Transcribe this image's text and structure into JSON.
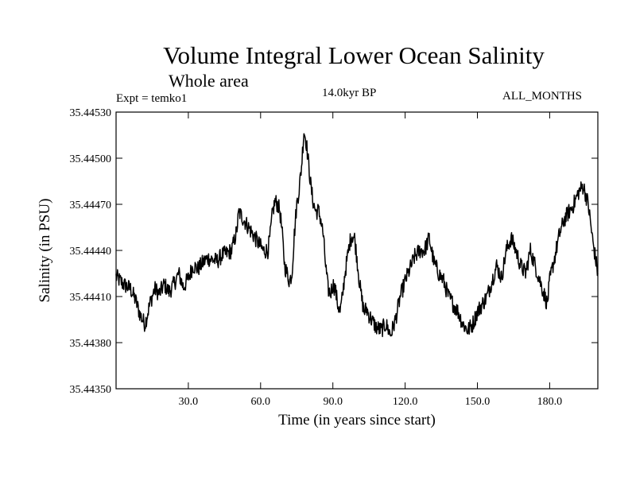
{
  "header": {
    "expt": "Expt = temko1",
    "period": "14.0kyr BP",
    "months": "ALL_MONTHS"
  },
  "chart_data": {
    "type": "line",
    "title": "Volume Integral Lower Ocean Salinity",
    "subtitle": "Whole area",
    "xlabel": "Time (in years since start)",
    "ylabel": "Salinity (in PSU)",
    "xlim": [
      0,
      200
    ],
    "ylim": [
      35.4435,
      35.4453
    ],
    "xticks": [
      30,
      60,
      90,
      120,
      150,
      180
    ],
    "xtick_labels": [
      "30.0",
      "60.0",
      "90.0",
      "120.0",
      "150.0",
      "180.0"
    ],
    "yticks": [
      35.4435,
      35.4438,
      35.4441,
      35.4444,
      35.4447,
      35.445,
      35.4453
    ],
    "ytick_labels": [
      "35.44350",
      "35.44380",
      "35.44410",
      "35.44440",
      "35.44470",
      "35.44500",
      "35.44530"
    ],
    "grid": false,
    "series": [
      {
        "name": "Volume integral lower ocean salinity",
        "x": [
          0,
          3,
          6,
          8,
          10,
          12,
          14,
          16,
          18,
          20,
          22,
          24,
          26,
          28,
          30,
          32,
          34,
          36,
          38,
          40,
          42,
          44,
          46,
          48,
          50,
          51,
          53,
          55,
          57,
          59,
          61,
          63,
          64,
          65,
          66,
          67,
          68,
          69,
          70,
          72,
          73,
          74,
          75,
          76,
          77,
          78,
          79,
          80,
          81,
          82,
          83,
          84,
          85,
          86,
          87,
          88,
          89,
          90,
          91,
          92,
          93,
          94,
          95,
          96,
          97,
          98,
          99,
          100,
          101,
          102,
          103,
          104,
          105,
          106,
          108,
          110,
          112,
          114,
          116,
          118,
          120,
          122,
          124,
          126,
          128,
          130,
          132,
          134,
          136,
          138,
          140,
          142,
          144,
          146,
          148,
          150,
          152,
          154,
          156,
          158,
          160,
          162,
          164,
          166,
          168,
          170,
          172,
          174,
          176,
          177,
          178,
          179,
          180,
          182,
          184,
          186,
          188,
          190,
          192,
          194,
          196,
          198,
          200
        ],
        "y": [
          35.44423,
          35.44418,
          35.44415,
          35.44408,
          35.44398,
          35.44392,
          35.44405,
          35.44415,
          35.44412,
          35.44418,
          35.44413,
          35.44418,
          35.44425,
          35.44416,
          35.44422,
          35.4443,
          35.44428,
          35.44432,
          35.44435,
          35.44434,
          35.44433,
          35.44437,
          35.44438,
          35.4444,
          35.44452,
          35.44465,
          35.4446,
          35.44455,
          35.4445,
          35.44445,
          35.4444,
          35.4444,
          35.4445,
          35.44465,
          35.44472,
          35.4447,
          35.44466,
          35.4445,
          35.4443,
          35.4442,
          35.44425,
          35.4445,
          35.4447,
          35.4448,
          35.44495,
          35.44518,
          35.4451,
          35.44495,
          35.4448,
          35.4447,
          35.44465,
          35.44466,
          35.4446,
          35.4445,
          35.4443,
          35.44415,
          35.44412,
          35.44418,
          35.44415,
          35.44405,
          35.444,
          35.4441,
          35.44425,
          35.44435,
          35.44445,
          35.4445,
          35.44448,
          35.44435,
          35.4442,
          35.44408,
          35.444,
          35.44402,
          35.44398,
          35.44395,
          35.4439,
          35.44388,
          35.44392,
          35.44385,
          35.44395,
          35.4441,
          35.4442,
          35.44428,
          35.44436,
          35.4444,
          35.4444,
          35.44448,
          35.44432,
          35.44425,
          35.4442,
          35.4441,
          35.44405,
          35.444,
          35.44392,
          35.44388,
          35.44392,
          35.444,
          35.44405,
          35.4441,
          35.4442,
          35.4443,
          35.44422,
          35.4444,
          35.44448,
          35.4444,
          35.4443,
          35.44425,
          35.4444,
          35.4443,
          35.4442,
          35.44415,
          35.4441,
          35.44405,
          35.4442,
          35.44435,
          35.4445,
          35.4446,
          35.44465,
          35.4447,
          35.44478,
          35.44482,
          35.4447,
          35.44445,
          35.44425
        ]
      }
    ]
  }
}
